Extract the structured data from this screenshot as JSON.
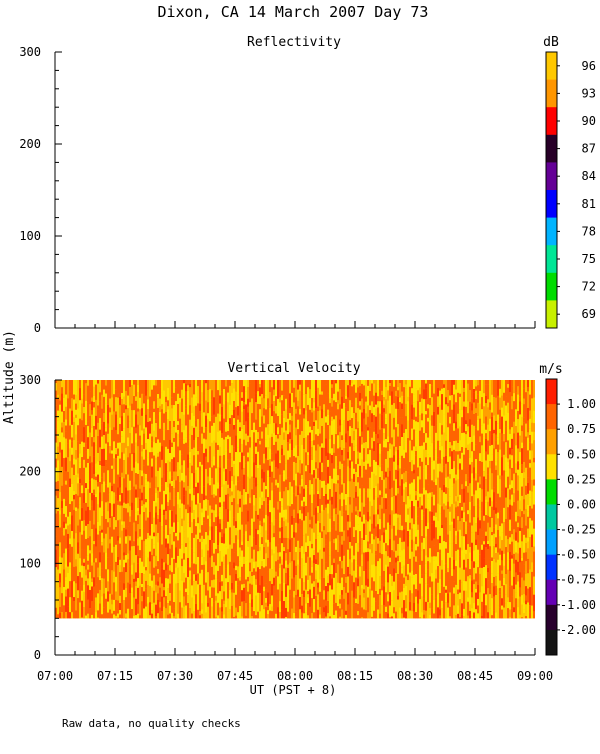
{
  "title": "Dixon, CA 14 March 2007  Day  73",
  "footnote": "Raw data, no quality checks",
  "ylabel": "Altitude (m)",
  "xlabel": "UT  (PST + 8)",
  "chart_data": [
    {
      "type": "heatmap",
      "title": "Reflectivity",
      "x_ticks": [
        "07:00",
        "07:15",
        "07:30",
        "07:45",
        "08:00",
        "08:15",
        "08:30",
        "08:45",
        "09:00"
      ],
      "xlim": [
        "07:00",
        "09:00"
      ],
      "ylim": [
        0,
        300
      ],
      "y_ticks": [
        0,
        100,
        200,
        300
      ],
      "colorbar": {
        "unit": "dB",
        "labels": [
          "96",
          "93",
          "90",
          "87",
          "84",
          "81",
          "78",
          "75",
          "72",
          "69"
        ],
        "colors_top_to_bottom": [
          "#ffc800",
          "#ff9600",
          "#ff0000",
          "#280028",
          "#640096",
          "#0000ff",
          "#00b4ff",
          "#00e696",
          "#00dc00",
          "#c8f000"
        ]
      },
      "data": "no echoes shown"
    },
    {
      "type": "heatmap",
      "title": "Vertical Velocity",
      "x_ticks": [
        "07:00",
        "07:15",
        "07:30",
        "07:45",
        "08:00",
        "08:15",
        "08:30",
        "08:45",
        "09:00"
      ],
      "xlim": [
        "07:00",
        "09:00"
      ],
      "ylim": [
        0,
        300
      ],
      "y_ticks": [
        0,
        100,
        200,
        300
      ],
      "data_altitude_range": [
        40,
        300
      ],
      "dominant_values_range": [
        0.25,
        1.0
      ],
      "colorbar": {
        "unit": "m/s",
        "labels": [
          "1.00",
          "0.75",
          "0.50",
          "0.25",
          "0.00",
          "-0.25",
          "-0.50",
          "-0.75",
          "-1.00",
          "-2.00"
        ],
        "colors_top_to_bottom": [
          "#ff1e00",
          "#ff6400",
          "#ffa000",
          "#ffe100",
          "#00dc00",
          "#00c8a0",
          "#00a0ff",
          "#0032ff",
          "#6400b4",
          "#28002d",
          "#141414"
        ]
      }
    }
  ]
}
